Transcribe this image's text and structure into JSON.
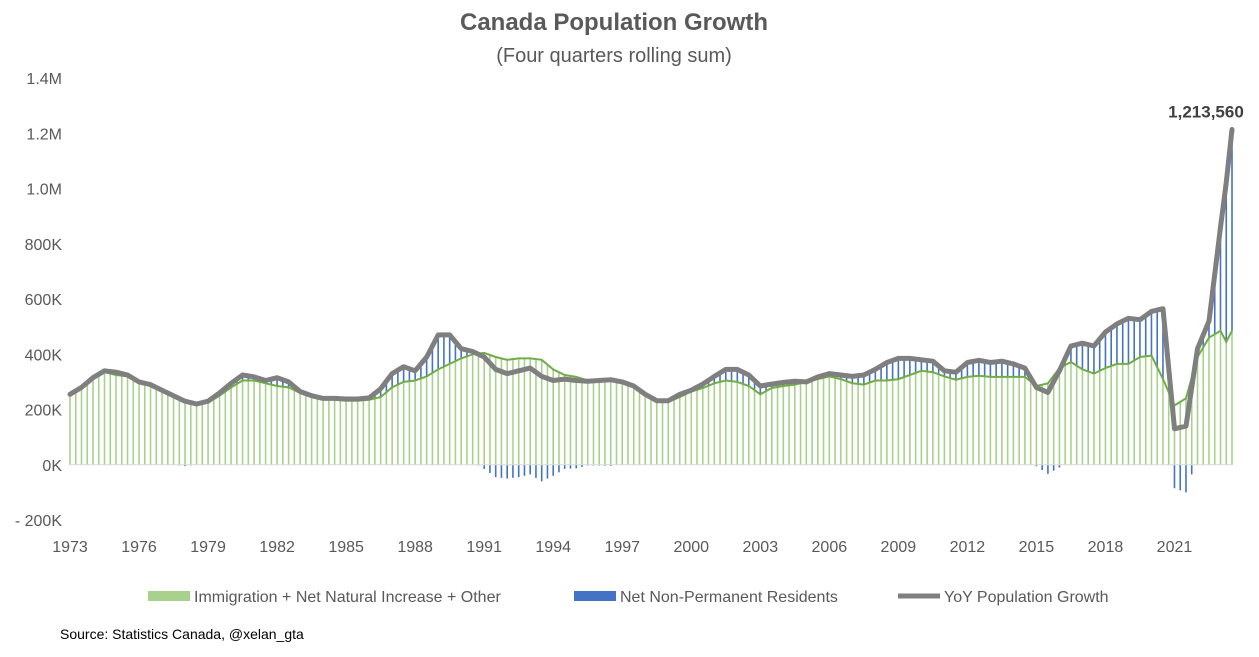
{
  "chart_data": {
    "type": "bar",
    "title": "Canada Population Growth",
    "subtitle": "(Four quarters rolling sum)",
    "source": "Source: Statistics Canada, @xelan_gta",
    "x_tick_labels": [
      "1973",
      "1976",
      "1979",
      "1982",
      "1985",
      "1988",
      "1991",
      "1994",
      "1997",
      "2000",
      "2003",
      "2006",
      "2009",
      "2012",
      "2015",
      "2018",
      "2021"
    ],
    "y_tick_labels": [
      "- 200K",
      "0K",
      "200K",
      "400K",
      "600K",
      "800K",
      "1.0M",
      "1.2M",
      "1.4M"
    ],
    "y_ticks": [
      -200000,
      0,
      200000,
      400000,
      600000,
      800000,
      1000000,
      1200000,
      1400000
    ],
    "ylim": [
      -200000,
      1400000
    ],
    "x_range": [
      1973.0,
      2023.5
    ],
    "legend_position": "bottom",
    "legend": [
      {
        "label": "Immigration + Net Natural Increase + Other",
        "color": "#a9d18e"
      },
      {
        "label": "Net Non-Permanent Residents",
        "color": "#4472c4"
      },
      {
        "label": "YoY Population Growth",
        "color": "#7f7f7f"
      }
    ],
    "annotations": [
      {
        "x": 2023.5,
        "y": 1213560,
        "text": "1,213,560"
      }
    ],
    "base_anchors": [
      [
        1973.0,
        250000
      ],
      [
        1973.5,
        275000
      ],
      [
        1974.0,
        310000
      ],
      [
        1974.5,
        335000
      ],
      [
        1975.0,
        325000
      ],
      [
        1975.5,
        320000
      ],
      [
        1976.0,
        300000
      ],
      [
        1976.5,
        285000
      ],
      [
        1977.0,
        270000
      ],
      [
        1977.5,
        250000
      ],
      [
        1978.0,
        235000
      ],
      [
        1978.5,
        220000
      ],
      [
        1979.0,
        225000
      ],
      [
        1979.5,
        250000
      ],
      [
        1980.0,
        280000
      ],
      [
        1980.5,
        305000
      ],
      [
        1981.0,
        305000
      ],
      [
        1981.5,
        295000
      ],
      [
        1982.0,
        285000
      ],
      [
        1982.5,
        280000
      ],
      [
        1983.0,
        260000
      ],
      [
        1983.5,
        245000
      ],
      [
        1984.0,
        238000
      ],
      [
        1984.5,
        236000
      ],
      [
        1985.0,
        232000
      ],
      [
        1985.5,
        232000
      ],
      [
        1986.0,
        235000
      ],
      [
        1986.5,
        245000
      ],
      [
        1987.0,
        280000
      ],
      [
        1987.5,
        300000
      ],
      [
        1988.0,
        305000
      ],
      [
        1988.5,
        320000
      ],
      [
        1989.0,
        345000
      ],
      [
        1989.5,
        365000
      ],
      [
        1990.0,
        385000
      ],
      [
        1990.5,
        400000
      ],
      [
        1991.0,
        405000
      ],
      [
        1991.5,
        390000
      ],
      [
        1992.0,
        380000
      ],
      [
        1992.5,
        385000
      ],
      [
        1993.0,
        385000
      ],
      [
        1993.5,
        380000
      ],
      [
        1994.0,
        345000
      ],
      [
        1994.5,
        325000
      ],
      [
        1995.0,
        318000
      ],
      [
        1995.5,
        305000
      ],
      [
        1996.0,
        308000
      ],
      [
        1996.5,
        312000
      ],
      [
        1997.0,
        300000
      ],
      [
        1997.5,
        285000
      ],
      [
        1998.0,
        250000
      ],
      [
        1998.5,
        230000
      ],
      [
        1999.0,
        228000
      ],
      [
        1999.5,
        245000
      ],
      [
        2000.0,
        265000
      ],
      [
        2000.5,
        278000
      ],
      [
        2001.0,
        295000
      ],
      [
        2001.5,
        305000
      ],
      [
        2002.0,
        300000
      ],
      [
        2002.5,
        285000
      ],
      [
        2003.0,
        255000
      ],
      [
        2003.5,
        278000
      ],
      [
        2004.0,
        285000
      ],
      [
        2004.5,
        290000
      ],
      [
        2005.0,
        300000
      ],
      [
        2005.5,
        310000
      ],
      [
        2006.0,
        320000
      ],
      [
        2006.5,
        310000
      ],
      [
        2007.0,
        295000
      ],
      [
        2007.5,
        290000
      ],
      [
        2008.0,
        305000
      ],
      [
        2008.5,
        305000
      ],
      [
        2009.0,
        310000
      ],
      [
        2009.5,
        325000
      ],
      [
        2010.0,
        340000
      ],
      [
        2010.5,
        335000
      ],
      [
        2011.0,
        320000
      ],
      [
        2011.5,
        308000
      ],
      [
        2012.0,
        318000
      ],
      [
        2012.5,
        322000
      ],
      [
        2013.0,
        318000
      ],
      [
        2013.5,
        318000
      ],
      [
        2014.0,
        318000
      ],
      [
        2014.5,
        318000
      ],
      [
        2015.0,
        285000
      ],
      [
        2015.5,
        295000
      ],
      [
        2016.0,
        350000
      ],
      [
        2016.5,
        372000
      ],
      [
        2017.0,
        345000
      ],
      [
        2017.5,
        330000
      ],
      [
        2018.0,
        350000
      ],
      [
        2018.5,
        365000
      ],
      [
        2019.0,
        365000
      ],
      [
        2019.5,
        390000
      ],
      [
        2020.0,
        395000
      ],
      [
        2020.5,
        310000
      ],
      [
        2021.0,
        215000
      ],
      [
        2021.5,
        240000
      ],
      [
        2022.0,
        390000
      ],
      [
        2022.5,
        460000
      ],
      [
        2023.0,
        485000
      ],
      [
        2023.25,
        445000
      ],
      [
        2023.5,
        485000
      ]
    ],
    "total_anchors": [
      [
        1973.0,
        255000
      ],
      [
        1973.5,
        280000
      ],
      [
        1974.0,
        315000
      ],
      [
        1974.5,
        340000
      ],
      [
        1975.0,
        335000
      ],
      [
        1975.5,
        325000
      ],
      [
        1976.0,
        300000
      ],
      [
        1976.5,
        290000
      ],
      [
        1977.0,
        270000
      ],
      [
        1977.5,
        250000
      ],
      [
        1978.0,
        230000
      ],
      [
        1978.5,
        220000
      ],
      [
        1979.0,
        230000
      ],
      [
        1979.5,
        260000
      ],
      [
        1980.0,
        295000
      ],
      [
        1980.5,
        325000
      ],
      [
        1981.0,
        318000
      ],
      [
        1981.5,
        305000
      ],
      [
        1982.0,
        315000
      ],
      [
        1982.5,
        300000
      ],
      [
        1983.0,
        265000
      ],
      [
        1983.5,
        250000
      ],
      [
        1984.0,
        240000
      ],
      [
        1984.5,
        240000
      ],
      [
        1985.0,
        238000
      ],
      [
        1985.5,
        238000
      ],
      [
        1986.0,
        242000
      ],
      [
        1986.5,
        275000
      ],
      [
        1987.0,
        330000
      ],
      [
        1987.5,
        355000
      ],
      [
        1988.0,
        340000
      ],
      [
        1988.5,
        390000
      ],
      [
        1989.0,
        470000
      ],
      [
        1989.5,
        470000
      ],
      [
        1990.0,
        420000
      ],
      [
        1990.5,
        410000
      ],
      [
        1991.0,
        390000
      ],
      [
        1991.5,
        345000
      ],
      [
        1992.0,
        330000
      ],
      [
        1992.5,
        340000
      ],
      [
        1993.0,
        350000
      ],
      [
        1993.5,
        320000
      ],
      [
        1994.0,
        305000
      ],
      [
        1994.5,
        310000
      ],
      [
        1995.0,
        305000
      ],
      [
        1995.5,
        302000
      ],
      [
        1996.0,
        305000
      ],
      [
        1996.5,
        308000
      ],
      [
        1997.0,
        300000
      ],
      [
        1997.5,
        285000
      ],
      [
        1998.0,
        255000
      ],
      [
        1998.5,
        232000
      ],
      [
        1999.0,
        232000
      ],
      [
        1999.5,
        255000
      ],
      [
        2000.0,
        270000
      ],
      [
        2000.5,
        292000
      ],
      [
        2001.0,
        320000
      ],
      [
        2001.5,
        345000
      ],
      [
        2002.0,
        345000
      ],
      [
        2002.5,
        325000
      ],
      [
        2003.0,
        285000
      ],
      [
        2003.5,
        292000
      ],
      [
        2004.0,
        298000
      ],
      [
        2004.5,
        302000
      ],
      [
        2005.0,
        300000
      ],
      [
        2005.5,
        318000
      ],
      [
        2006.0,
        330000
      ],
      [
        2006.5,
        325000
      ],
      [
        2007.0,
        320000
      ],
      [
        2007.5,
        325000
      ],
      [
        2008.0,
        345000
      ],
      [
        2008.5,
        370000
      ],
      [
        2009.0,
        385000
      ],
      [
        2009.5,
        385000
      ],
      [
        2010.0,
        380000
      ],
      [
        2010.5,
        375000
      ],
      [
        2011.0,
        340000
      ],
      [
        2011.5,
        335000
      ],
      [
        2012.0,
        370000
      ],
      [
        2012.5,
        378000
      ],
      [
        2013.0,
        370000
      ],
      [
        2013.5,
        375000
      ],
      [
        2014.0,
        365000
      ],
      [
        2014.5,
        350000
      ],
      [
        2015.0,
        280000
      ],
      [
        2015.5,
        262000
      ],
      [
        2016.0,
        340000
      ],
      [
        2016.5,
        430000
      ],
      [
        2017.0,
        440000
      ],
      [
        2017.5,
        430000
      ],
      [
        2018.0,
        480000
      ],
      [
        2018.5,
        510000
      ],
      [
        2019.0,
        530000
      ],
      [
        2019.5,
        525000
      ],
      [
        2020.0,
        555000
      ],
      [
        2020.5,
        565000
      ],
      [
        2021.0,
        130000
      ],
      [
        2021.5,
        140000
      ],
      [
        2022.0,
        420000
      ],
      [
        2022.5,
        520000
      ],
      [
        2023.0,
        860000
      ],
      [
        2023.25,
        1020000
      ],
      [
        2023.5,
        1213560
      ]
    ]
  }
}
